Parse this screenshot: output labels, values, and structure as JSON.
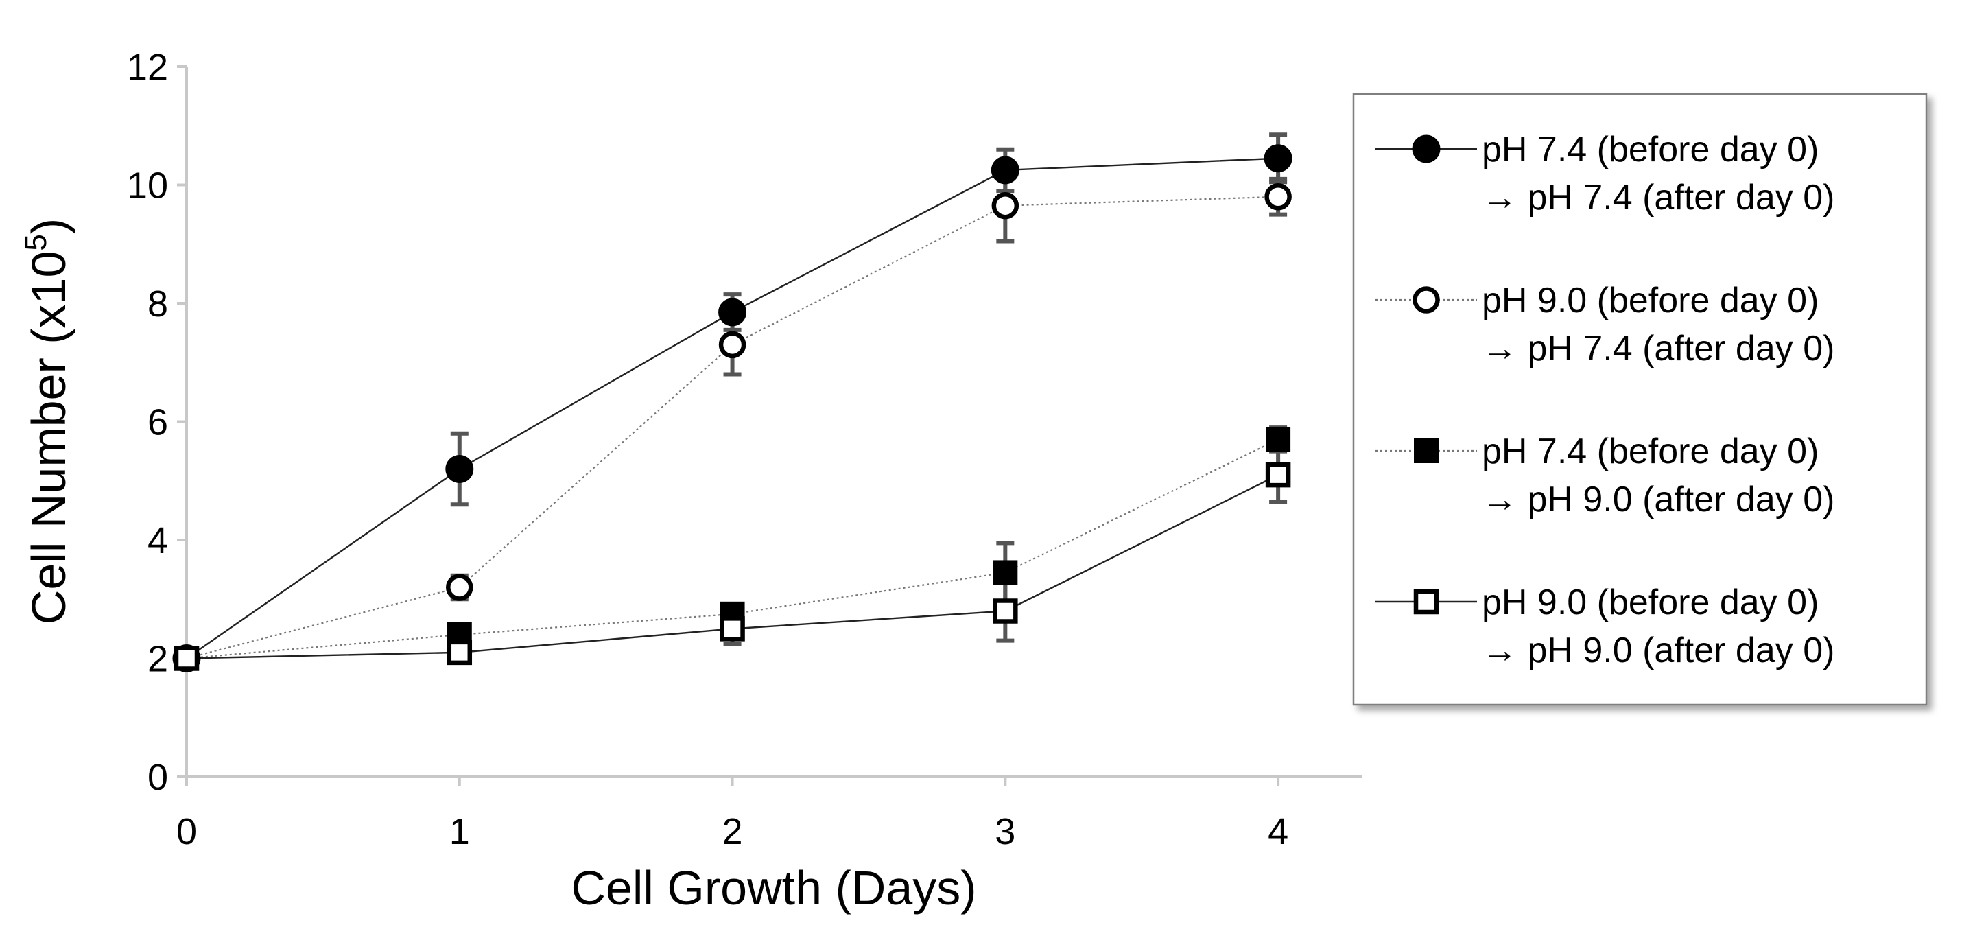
{
  "chart_data": {
    "type": "line",
    "title": "",
    "xlabel": "Cell Growth (Days)",
    "ylabel": {
      "text": "Cell Number (x10",
      "sup": "5",
      "close": ")"
    },
    "x": [
      0,
      1,
      2,
      3,
      4
    ],
    "x_ticks": [
      "0",
      "1",
      "2",
      "3",
      "4"
    ],
    "xlim": [
      0,
      4.5
    ],
    "ylim": [
      0,
      12
    ],
    "y_ticks": [
      "0",
      "2",
      "4",
      "6",
      "8",
      "10",
      "12"
    ],
    "grid": false,
    "legend_position": "right",
    "series": [
      {
        "name_line1": "pH 7.4 (before day 0)",
        "name_line2": "→ pH 7.4 (after day 0)",
        "values": [
          2.0,
          5.2,
          7.85,
          10.25,
          10.45
        ],
        "errors": [
          0.0,
          0.6,
          0.3,
          0.35,
          0.4
        ],
        "marker": "circle-filled",
        "line_style": "solid",
        "line_color": "#222222"
      },
      {
        "name_line1": "pH 9.0 (before day 0)",
        "name_line2": "→ pH 7.4 (after day 0)",
        "values": [
          2.0,
          3.2,
          7.3,
          9.65,
          9.8
        ],
        "errors": [
          0.0,
          0.2,
          0.5,
          0.6,
          0.3
        ],
        "marker": "circle-open",
        "line_style": "dotted",
        "line_color": "#777777"
      },
      {
        "name_line1": "pH 7.4 (before day 0)",
        "name_line2": "→ pH 9.0 (after day 0)",
        "values": [
          2.0,
          2.4,
          2.75,
          3.45,
          5.7
        ],
        "errors": [
          0.0,
          0.15,
          0.15,
          0.5,
          0.2
        ],
        "marker": "square-filled",
        "line_style": "dotted",
        "line_color": "#777777"
      },
      {
        "name_line1": "pH 9.0 (before day 0)",
        "name_line2": "→ pH 9.0 (after day 0)",
        "values": [
          2.0,
          2.1,
          2.5,
          2.8,
          5.1
        ],
        "errors": [
          0.0,
          0.1,
          0.25,
          0.5,
          0.45
        ],
        "marker": "square-open",
        "line_style": "solid",
        "line_color": "#222222"
      }
    ]
  }
}
